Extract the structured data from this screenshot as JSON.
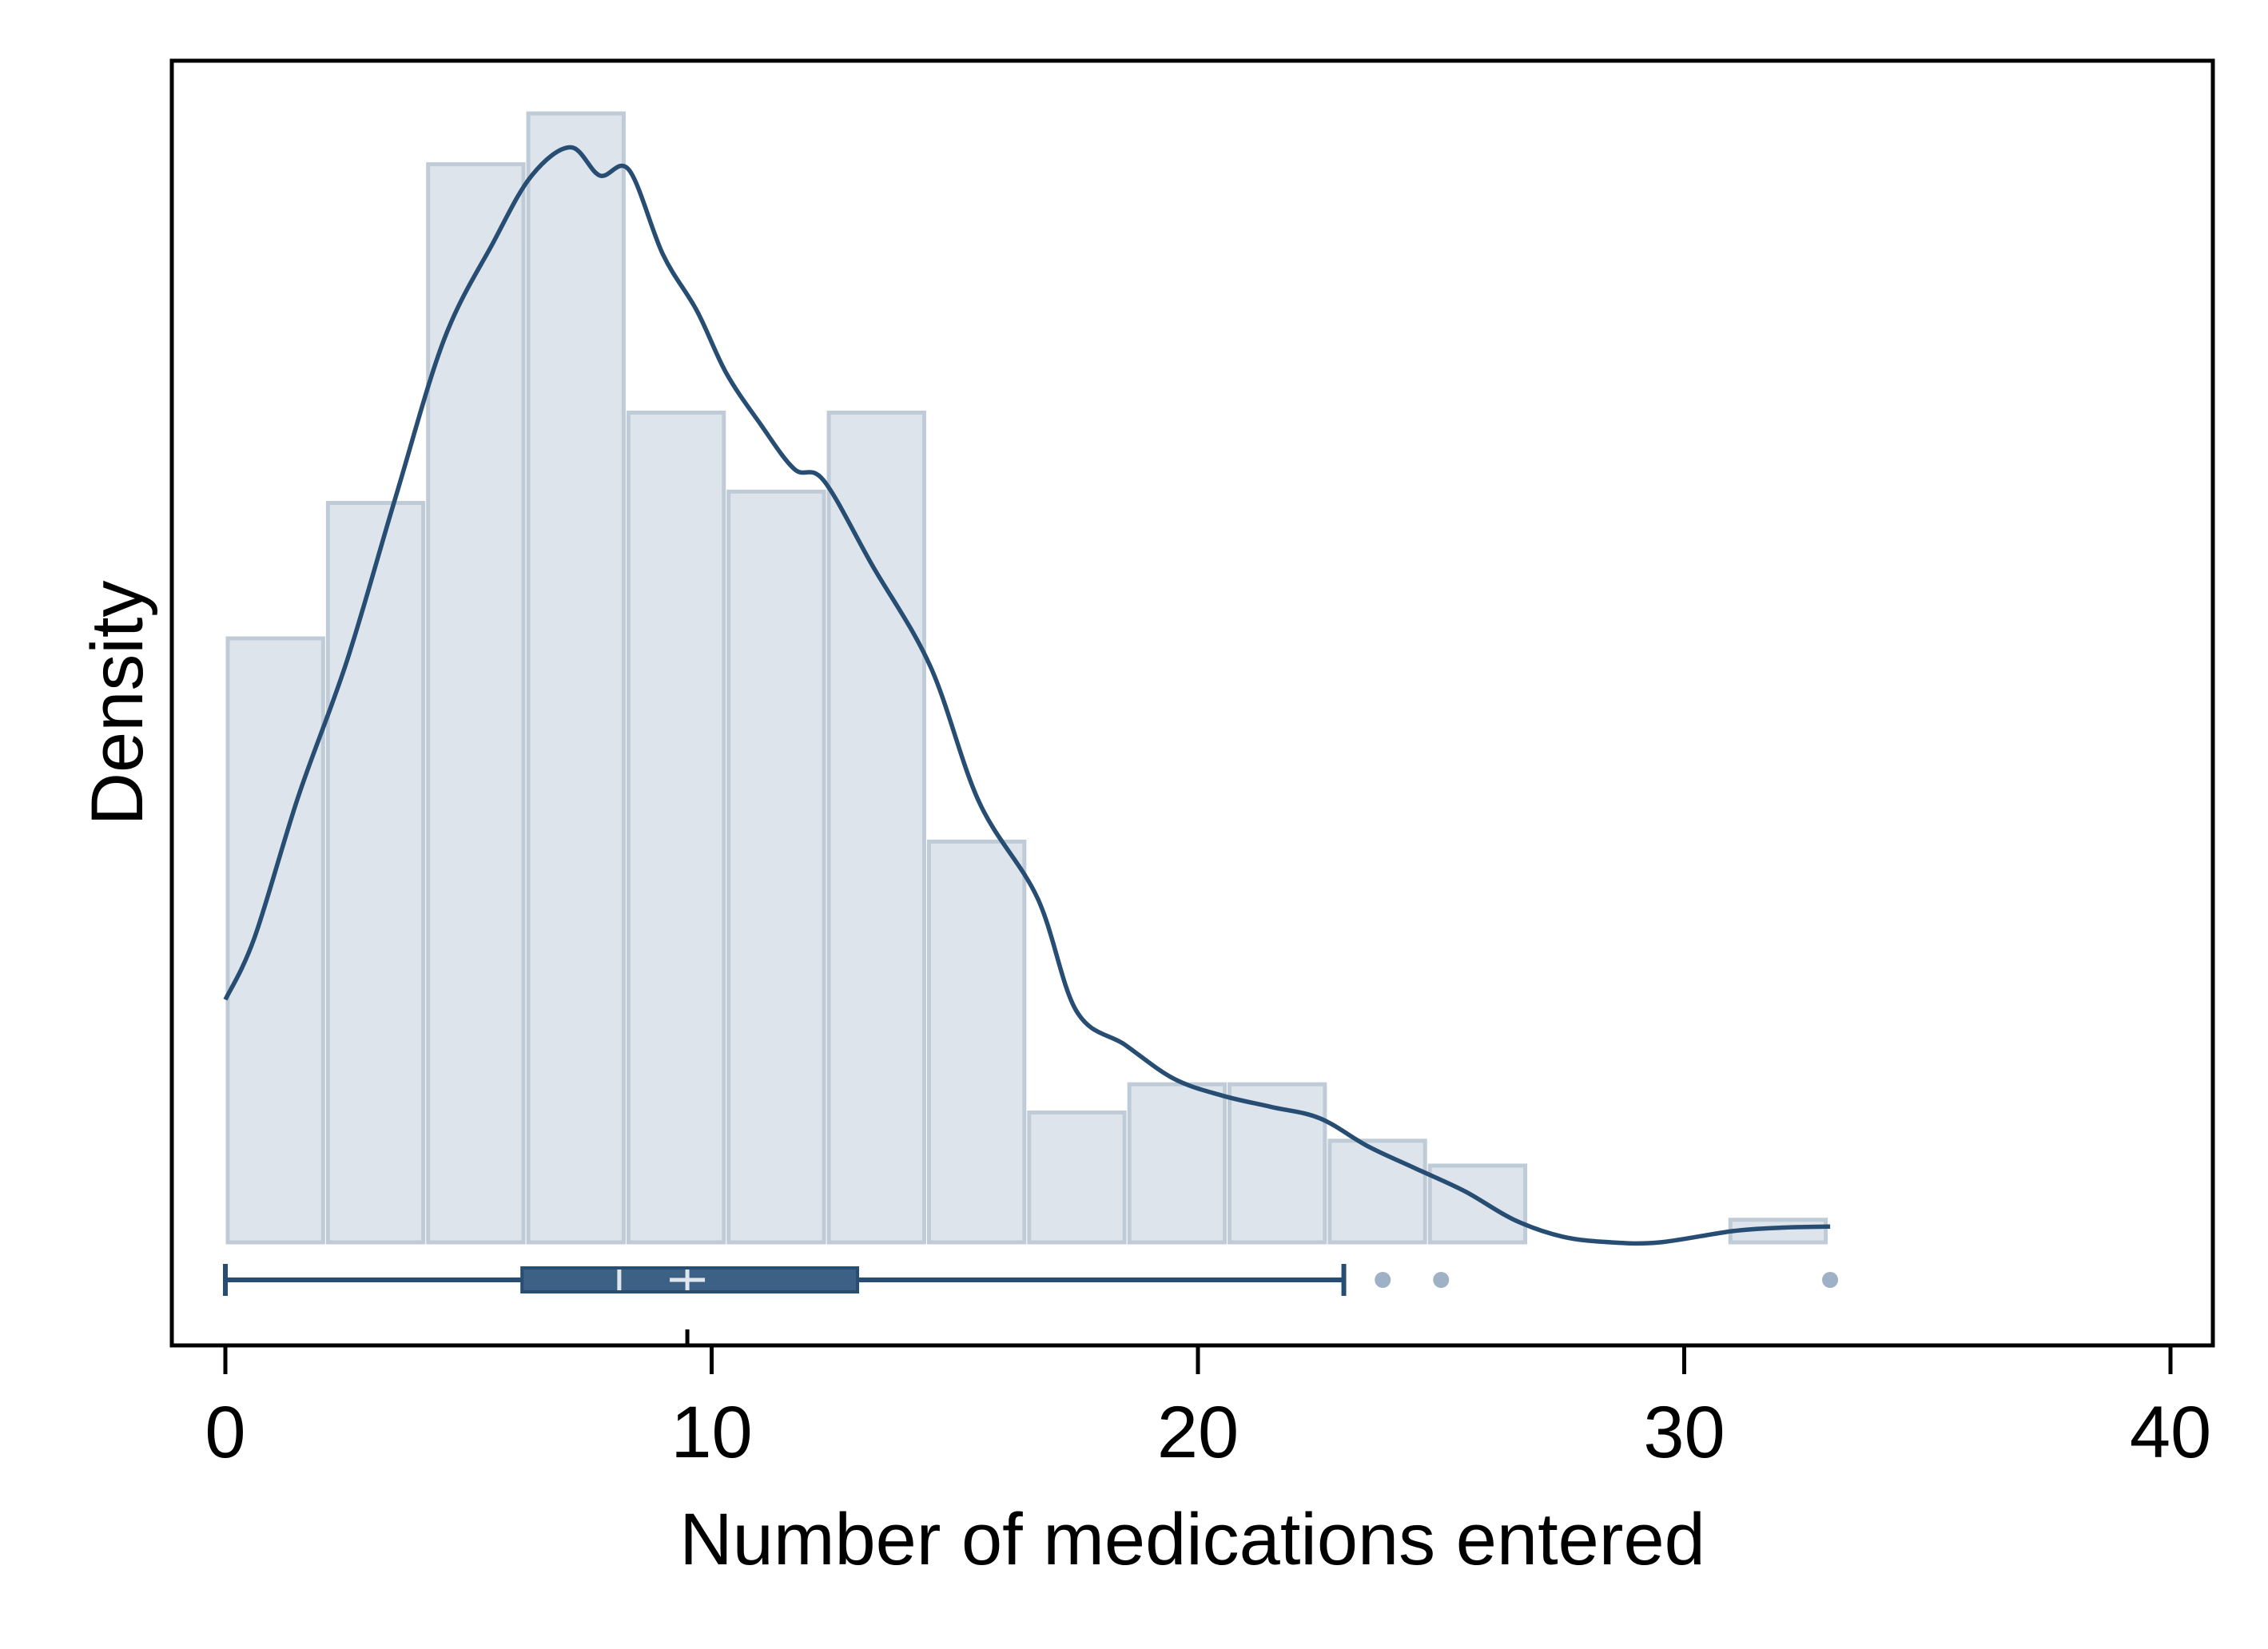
{
  "chart_data": {
    "type": "histogram",
    "xlabel": "Number of medications entered",
    "ylabel": "Density",
    "xlim": [
      0,
      40
    ],
    "xticks": [
      "0",
      "10",
      "20",
      "30",
      "40"
    ],
    "histogram": {
      "bins": [
        {
          "x0": 0,
          "x1": 2.06,
          "density": 0.0535
        },
        {
          "x0": 2.06,
          "x1": 4.12,
          "density": 0.0655
        },
        {
          "x0": 4.12,
          "x1": 6.18,
          "density": 0.0955
        },
        {
          "x0": 6.18,
          "x1": 8.24,
          "density": 0.1
        },
        {
          "x0": 8.24,
          "x1": 10.3,
          "density": 0.0735
        },
        {
          "x0": 10.3,
          "x1": 12.36,
          "density": 0.0665
        },
        {
          "x0": 12.36,
          "x1": 14.42,
          "density": 0.0735
        },
        {
          "x0": 14.42,
          "x1": 16.48,
          "density": 0.0355
        },
        {
          "x0": 16.48,
          "x1": 18.54,
          "density": 0.0115
        },
        {
          "x0": 18.54,
          "x1": 20.6,
          "density": 0.014
        },
        {
          "x0": 20.6,
          "x1": 22.66,
          "density": 0.014
        },
        {
          "x0": 22.66,
          "x1": 24.72,
          "density": 0.009
        },
        {
          "x0": 24.72,
          "x1": 26.78,
          "density": 0.0068
        },
        {
          "x0": 30.9,
          "x1": 32.96,
          "density": 0.002
        }
      ]
    },
    "kde": {
      "x": [
        0,
        0.6,
        1.5,
        2.5,
        3.5,
        4.5,
        5.5,
        6.3,
        7.1,
        7.7,
        8.3,
        9.0,
        9.7,
        10.3,
        11.0,
        11.7,
        12.3,
        13.3,
        14.5,
        15.5,
        16.7,
        17.5,
        18.5,
        19.5,
        20.5,
        21.5,
        22.5,
        23.5,
        24.5,
        25.5,
        26.5,
        27.5,
        28.5,
        29.5,
        31,
        32,
        33
      ],
      "y": [
        0.0215,
        0.027,
        0.0395,
        0.0515,
        0.066,
        0.08,
        0.0885,
        0.0945,
        0.097,
        0.0945,
        0.095,
        0.0875,
        0.0825,
        0.077,
        0.0725,
        0.0685,
        0.0675,
        0.06,
        0.051,
        0.039,
        0.0305,
        0.0205,
        0.0175,
        0.0145,
        0.013,
        0.012,
        0.011,
        0.0085,
        0.0065,
        0.0045,
        0.002,
        0.0005,
        0,
        0,
        0.001,
        0.0013,
        0.0014
      ]
    },
    "boxplot": {
      "whisker_low": 0,
      "q1": 6.1,
      "median": 8.1,
      "mean": 9.5,
      "q3": 13,
      "whisker_high": 23,
      "outliers": [
        23.8,
        25,
        33
      ]
    },
    "colors": {
      "bar_fill": "#dde4eb",
      "bar_stroke": "#bfccd7",
      "kde_line": "#274d73",
      "box_fill": "#3d6184",
      "outlier": "#9fb1c4",
      "frame": "#000000"
    },
    "grid": false,
    "legend": "none"
  }
}
